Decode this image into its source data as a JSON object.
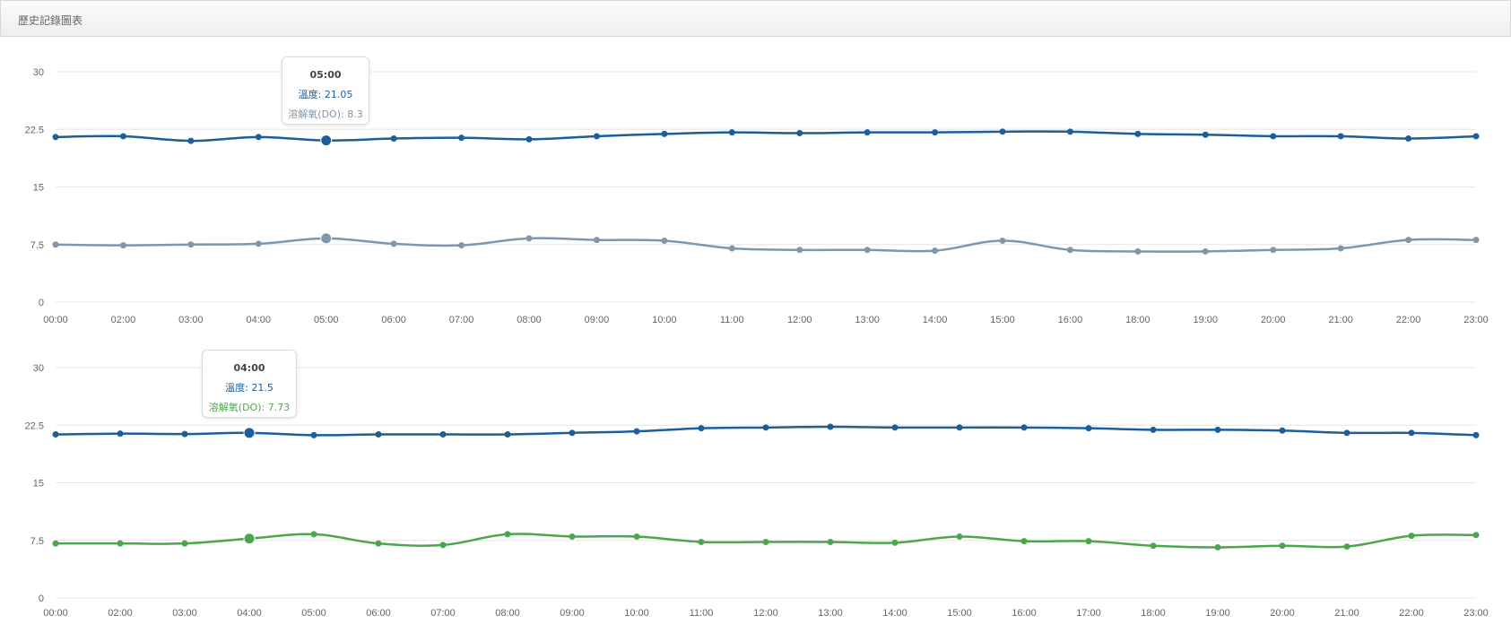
{
  "header": {
    "title": "歷史記錄圖表"
  },
  "chart_data": [
    {
      "type": "line",
      "x": [
        "00:00",
        "02:00",
        "03:00",
        "04:00",
        "05:00",
        "06:00",
        "07:00",
        "08:00",
        "09:00",
        "10:00",
        "11:00",
        "12:00",
        "13:00",
        "14:00",
        "15:00",
        "16:00",
        "18:00",
        "19:00",
        "20:00",
        "21:00",
        "22:00",
        "23:00"
      ],
      "ylim": [
        0,
        30
      ],
      "yticks": [
        "0",
        "7.5",
        "15",
        "22.5",
        "30"
      ],
      "grid": true,
      "series": [
        {
          "name": "溫度",
          "color": "#1a5e9c",
          "values": [
            21.5,
            21.6,
            21.0,
            21.5,
            21.05,
            21.3,
            21.4,
            21.2,
            21.6,
            21.9,
            22.1,
            22.0,
            22.1,
            22.1,
            22.2,
            22.2,
            21.9,
            21.8,
            21.6,
            21.6,
            21.3,
            21.6
          ]
        },
        {
          "name": "溶解氧(DO)",
          "color": "#7f97ad",
          "values": [
            7.5,
            7.4,
            7.5,
            7.6,
            8.3,
            7.6,
            7.4,
            8.3,
            8.1,
            8.0,
            7.0,
            6.8,
            6.8,
            6.7,
            8.0,
            6.8,
            6.6,
            6.6,
            6.8,
            7.0,
            8.1,
            8.1
          ]
        }
      ],
      "tooltip": {
        "time": "05:00",
        "lines": [
          "溫度: 21.05",
          "溶解氧(DO): 8.3"
        ],
        "index": 4
      }
    },
    {
      "type": "line",
      "x": [
        "00:00",
        "02:00",
        "03:00",
        "04:00",
        "05:00",
        "06:00",
        "07:00",
        "08:00",
        "09:00",
        "10:00",
        "11:00",
        "12:00",
        "13:00",
        "14:00",
        "15:00",
        "16:00",
        "17:00",
        "18:00",
        "19:00",
        "20:00",
        "21:00",
        "22:00",
        "23:00"
      ],
      "ylim": [
        0,
        30
      ],
      "yticks": [
        "0",
        "7.5",
        "15",
        "22.5",
        "30"
      ],
      "grid": true,
      "series": [
        {
          "name": "溫度",
          "color": "#1a5e9c",
          "values": [
            21.3,
            21.4,
            21.35,
            21.5,
            21.2,
            21.3,
            21.3,
            21.3,
            21.5,
            21.7,
            22.1,
            22.2,
            22.3,
            22.2,
            22.2,
            22.2,
            22.1,
            21.9,
            21.9,
            21.8,
            21.5,
            21.5,
            21.2
          ]
        },
        {
          "name": "溶解氧(DO)",
          "color": "#4ca64c",
          "values": [
            7.1,
            7.1,
            7.1,
            7.73,
            8.3,
            7.1,
            6.9,
            8.3,
            8.0,
            8.0,
            7.3,
            7.3,
            7.3,
            7.2,
            8.0,
            7.4,
            7.4,
            6.8,
            6.6,
            6.8,
            6.7,
            8.1,
            8.2
          ]
        }
      ],
      "tooltip": {
        "time": "04:00",
        "lines": [
          "溫度: 21.5",
          "溶解氧(DO): 7.73"
        ],
        "index": 3
      }
    }
  ]
}
